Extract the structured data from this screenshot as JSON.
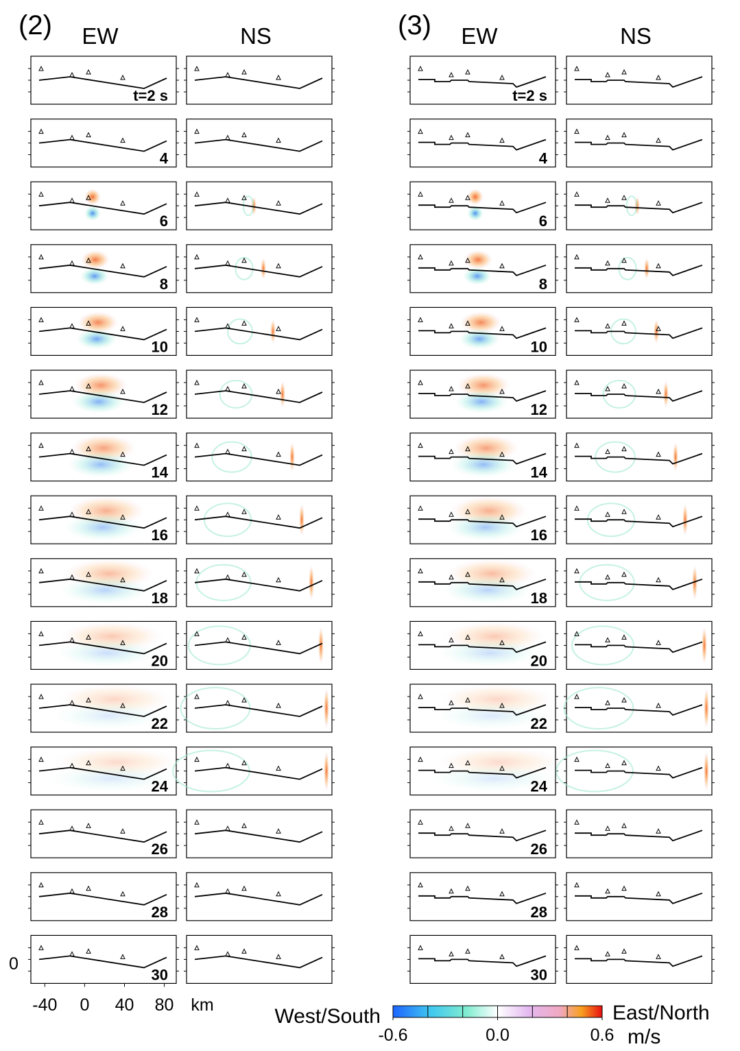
{
  "groups": [
    {
      "label": "(2)",
      "components": [
        "EW",
        "NS"
      ]
    },
    {
      "label": "(3)",
      "components": [
        "EW",
        "NS"
      ]
    }
  ],
  "times": [
    "t=2 s",
    "4",
    "6",
    "8",
    "10",
    "12",
    "14",
    "16",
    "18",
    "20",
    "22",
    "24",
    "26",
    "28",
    "30"
  ],
  "x_axis": {
    "xlim": [
      -54,
      92
    ],
    "ticks": [
      -40,
      0,
      40,
      80
    ],
    "unit": "km"
  },
  "y_tick_label": "0",
  "colorbar": {
    "left_label": "West/South",
    "right_label": "East/North",
    "unit": "m/s",
    "lim": [
      -0.6,
      0.6
    ],
    "ticks": [
      -0.6,
      {
        "value": 0,
        "label": "0.0"
      },
      0.6
    ]
  }
}
